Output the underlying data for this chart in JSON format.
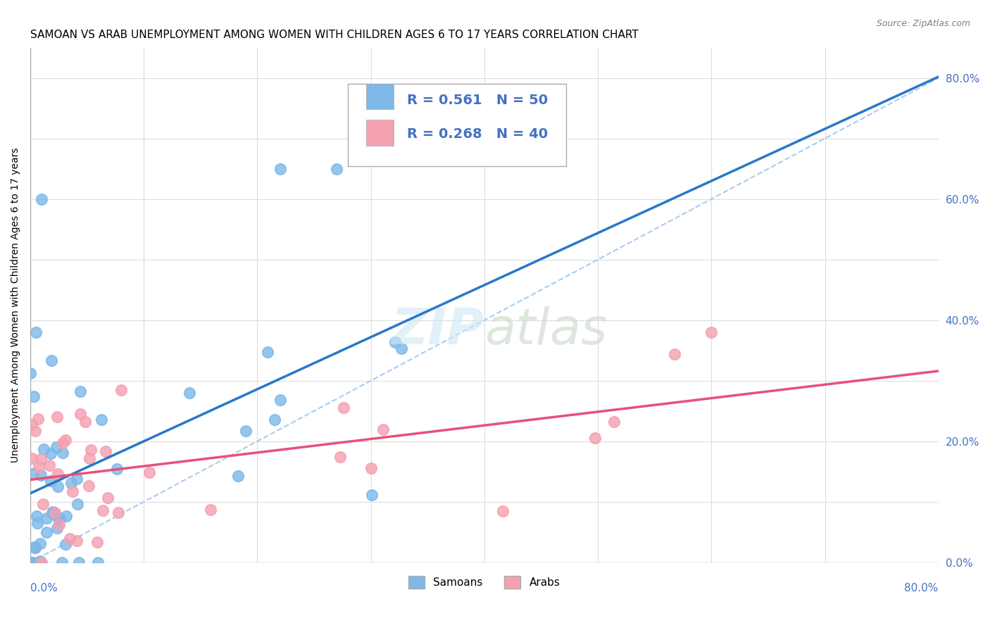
{
  "title": "SAMOAN VS ARAB UNEMPLOYMENT AMONG WOMEN WITH CHILDREN AGES 6 TO 17 YEARS CORRELATION CHART",
  "source": "Source: ZipAtlas.com",
  "ylabel": "Unemployment Among Women with Children Ages 6 to 17 years",
  "samoans_color": "#7db8e8",
  "arabs_color": "#f4a0b0",
  "samoans_line_color": "#2878c8",
  "arabs_line_color": "#e8507a",
  "R_samoans": 0.561,
  "N_samoans": 50,
  "R_arabs": 0.268,
  "N_arabs": 40,
  "legend_text_color": "#4472c4",
  "background_color": "#ffffff",
  "xlim": [
    0.0,
    0.8
  ],
  "ylim": [
    0.0,
    0.85
  ],
  "grid_color": "#dddddd",
  "ref_line_color": "#aaccee"
}
